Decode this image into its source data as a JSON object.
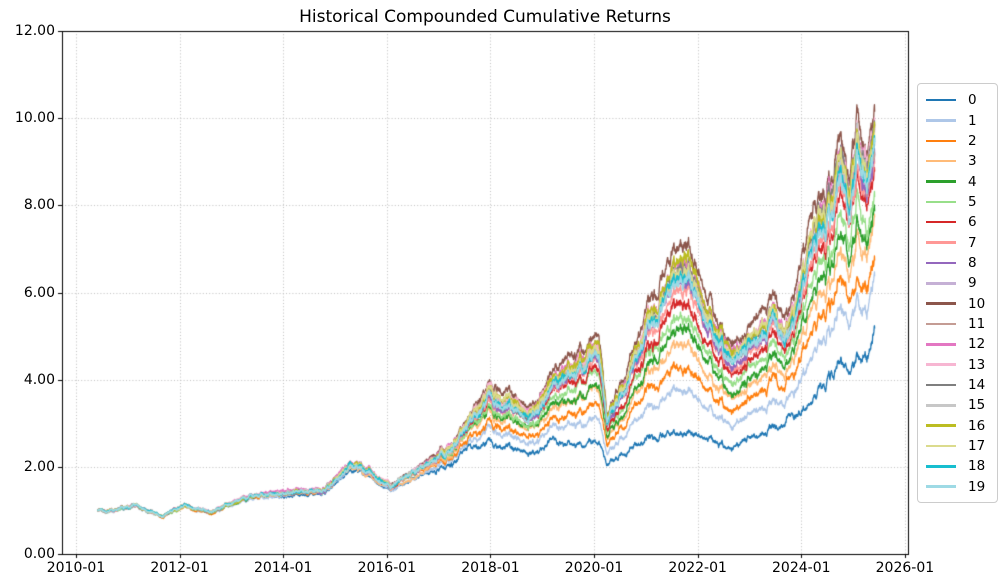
{
  "chart_data": {
    "type": "line",
    "title": "Historical Compounded Cumulative Returns",
    "xlabel": "",
    "ylabel": "",
    "grid": {
      "style": "dotted",
      "color": "#b8b8b8"
    },
    "legend": {
      "position": "outside-right"
    },
    "x_tick_labels": [
      "2010-01",
      "2012-01",
      "2014-01",
      "2016-01",
      "2018-01",
      "2020-01",
      "2022-01",
      "2024-01",
      "2026-01"
    ],
    "y_tick_labels": [
      "0.00",
      "2.00",
      "4.00",
      "6.00",
      "8.00",
      "10.00",
      "12.00"
    ],
    "xlim_years": [
      2009.73,
      2026.06
    ],
    "ylim": [
      0,
      12
    ],
    "x": [
      "2010-06",
      "2010-10",
      "2011-02",
      "2011-09",
      "2012-02",
      "2012-08",
      "2013-01",
      "2013-07",
      "2014-01",
      "2014-10",
      "2015-05",
      "2015-10",
      "2016-02",
      "2016-10",
      "2017-07",
      "2018-01",
      "2018-10",
      "2019-07",
      "2020-02",
      "2020-04",
      "2020-09",
      "2021-02",
      "2021-10",
      "2022-04",
      "2022-10",
      "2023-07",
      "2023-10",
      "2024-03",
      "2024-08",
      "2024-10",
      "2024-12",
      "2025-02",
      "2025-04",
      "2025-06"
    ],
    "series": [
      {
        "name": "0",
        "color": "#1f77b4",
        "values": [
          1.0,
          0.96,
          1.12,
          0.84,
          1.07,
          0.92,
          1.14,
          1.25,
          1.33,
          1.4,
          1.95,
          1.7,
          1.48,
          1.8,
          2.28,
          2.58,
          2.28,
          2.42,
          2.52,
          2.05,
          2.45,
          2.6,
          2.7,
          2.55,
          2.42,
          2.95,
          3.1,
          3.45,
          3.95,
          4.25,
          4.1,
          4.7,
          4.55,
          5.35
        ]
      },
      {
        "name": "1",
        "color": "#aec7e8",
        "values": [
          1.0,
          0.96,
          1.12,
          0.85,
          1.08,
          0.93,
          1.15,
          1.26,
          1.35,
          1.42,
          1.98,
          1.73,
          1.51,
          1.86,
          2.41,
          2.85,
          2.49,
          2.82,
          3.04,
          2.29,
          2.87,
          3.26,
          3.65,
          3.21,
          2.92,
          3.61,
          3.61,
          4.36,
          4.89,
          5.36,
          5.07,
          5.99,
          5.62,
          6.46
        ]
      },
      {
        "name": "2",
        "color": "#ff7f0e",
        "values": [
          1.0,
          0.97,
          1.13,
          0.85,
          1.08,
          0.93,
          1.16,
          1.27,
          1.36,
          1.44,
          2.01,
          1.76,
          1.52,
          1.89,
          2.49,
          3.03,
          2.64,
          3.1,
          3.39,
          2.46,
          3.15,
          3.71,
          4.29,
          3.66,
          3.26,
          4.06,
          3.95,
          4.99,
          5.52,
          6.12,
          5.73,
          6.86,
          6.34,
          7.22
        ]
      },
      {
        "name": "3",
        "color": "#ffbb78",
        "values": [
          1.0,
          0.97,
          1.13,
          0.85,
          1.08,
          0.94,
          1.16,
          1.28,
          1.37,
          1.45,
          2.02,
          1.77,
          1.54,
          1.92,
          2.56,
          3.18,
          2.76,
          3.32,
          3.68,
          2.59,
          3.38,
          4.07,
          4.81,
          4.02,
          3.54,
          4.42,
          4.23,
          5.48,
          6.03,
          6.72,
          6.26,
          7.57,
          6.93,
          7.82
        ]
      },
      {
        "name": "4",
        "color": "#2ca02c",
        "values": [
          1.01,
          0.97,
          1.13,
          0.86,
          1.09,
          0.94,
          1.17,
          1.28,
          1.37,
          1.46,
          2.03,
          1.78,
          1.55,
          1.94,
          2.6,
          3.26,
          2.82,
          3.44,
          3.84,
          2.67,
          3.51,
          4.28,
          5.11,
          4.23,
          3.7,
          4.63,
          4.39,
          5.77,
          6.33,
          7.08,
          6.56,
          7.98,
          7.27,
          8.18
        ]
      },
      {
        "name": "5",
        "color": "#98df8a",
        "values": [
          1.01,
          0.97,
          1.13,
          0.86,
          1.09,
          0.95,
          1.17,
          1.29,
          1.38,
          1.46,
          2.05,
          1.8,
          1.56,
          1.96,
          2.64,
          3.36,
          2.9,
          3.59,
          4.03,
          2.75,
          3.67,
          4.52,
          5.45,
          4.47,
          3.88,
          4.87,
          4.57,
          6.11,
          6.67,
          7.48,
          6.92,
          8.44,
          7.65,
          8.58
        ]
      },
      {
        "name": "6",
        "color": "#d62728",
        "values": [
          1.01,
          0.97,
          1.13,
          0.86,
          1.09,
          0.95,
          1.18,
          1.29,
          1.39,
          1.47,
          2.06,
          1.81,
          1.57,
          1.98,
          2.69,
          3.46,
          2.98,
          3.74,
          4.22,
          2.84,
          3.82,
          4.76,
          5.8,
          4.71,
          4.06,
          5.11,
          4.76,
          6.44,
          7.01,
          7.89,
          7.27,
          8.91,
          8.04,
          8.99
        ]
      },
      {
        "name": "7",
        "color": "#ff9896",
        "values": [
          1.01,
          0.98,
          1.14,
          0.86,
          1.09,
          0.95,
          1.18,
          1.3,
          1.39,
          1.48,
          2.07,
          1.82,
          1.57,
          2.0,
          2.72,
          3.53,
          3.04,
          3.85,
          4.36,
          2.91,
          3.93,
          4.94,
          6.05,
          4.89,
          4.2,
          5.29,
          4.89,
          6.69,
          7.27,
          8.19,
          7.53,
          9.26,
          8.33,
          9.29
        ]
      },
      {
        "name": "8",
        "color": "#9467bd",
        "values": [
          1.01,
          0.98,
          1.14,
          0.86,
          1.09,
          0.95,
          1.18,
          1.3,
          1.4,
          1.48,
          2.07,
          1.82,
          1.58,
          2.01,
          2.75,
          3.59,
          3.09,
          3.94,
          4.48,
          2.96,
          4.03,
          5.09,
          6.27,
          5.04,
          4.31,
          5.44,
          5.01,
          6.89,
          7.48,
          8.44,
          7.75,
          9.56,
          8.58,
          9.54
        ]
      },
      {
        "name": "9",
        "color": "#c5b0d5",
        "values": [
          1.01,
          0.98,
          1.14,
          0.87,
          1.1,
          0.95,
          1.18,
          1.3,
          1.4,
          1.49,
          2.08,
          1.83,
          1.58,
          2.01,
          2.76,
          3.62,
          3.1,
          3.98,
          4.53,
          2.99,
          4.07,
          5.15,
          6.36,
          5.1,
          4.36,
          5.5,
          5.06,
          6.98,
          7.56,
          8.54,
          7.84,
          9.67,
          8.67,
          9.64
        ]
      },
      {
        "name": "10",
        "color": "#8c564b",
        "values": [
          1.01,
          0.98,
          1.14,
          0.87,
          1.1,
          0.96,
          1.19,
          1.31,
          1.41,
          1.5,
          2.1,
          1.85,
          1.6,
          2.05,
          2.85,
          3.8,
          3.25,
          4.25,
          4.88,
          3.15,
          4.35,
          5.6,
          7.0,
          5.55,
          4.7,
          5.95,
          5.4,
          7.6,
          8.2,
          9.3,
          8.5,
          10.55,
          9.4,
          10.4
        ]
      },
      {
        "name": "11",
        "color": "#c49c94",
        "values": [
          1.01,
          0.98,
          1.14,
          0.87,
          1.1,
          0.96,
          1.18,
          1.3,
          1.4,
          1.49,
          2.08,
          1.83,
          1.59,
          2.02,
          2.78,
          3.65,
          3.13,
          4.03,
          4.6,
          3.02,
          4.12,
          5.24,
          6.48,
          5.19,
          4.43,
          5.59,
          5.12,
          7.1,
          7.69,
          8.69,
          7.97,
          9.85,
          8.82,
          9.79
        ]
      },
      {
        "name": "12",
        "color": "#e377c2",
        "values": [
          1.01,
          0.98,
          1.14,
          0.87,
          1.1,
          0.96,
          1.19,
          1.31,
          1.41,
          1.49,
          2.09,
          1.84,
          1.59,
          2.04,
          2.82,
          3.73,
          3.19,
          4.14,
          4.74,
          3.08,
          4.24,
          5.42,
          6.74,
          5.37,
          4.56,
          5.77,
          5.26,
          7.35,
          7.95,
          9.0,
          8.24,
          10.2,
          9.11,
          10.1
        ]
      },
      {
        "name": "13",
        "color": "#f7b6d2",
        "values": [
          1.01,
          0.98,
          1.14,
          0.87,
          1.1,
          0.96,
          1.19,
          1.31,
          1.4,
          1.49,
          2.09,
          1.84,
          1.59,
          2.03,
          2.8,
          3.7,
          3.17,
          4.1,
          4.69,
          3.06,
          4.2,
          5.36,
          6.66,
          5.31,
          4.52,
          5.71,
          5.22,
          7.27,
          7.86,
          8.9,
          8.15,
          10.08,
          9.01,
          10.0
        ]
      },
      {
        "name": "14",
        "color": "#7f7f7f",
        "values": [
          1.01,
          0.98,
          1.14,
          0.87,
          1.1,
          0.96,
          1.19,
          1.3,
          1.4,
          1.49,
          2.09,
          1.84,
          1.59,
          2.03,
          2.79,
          3.68,
          3.15,
          4.07,
          4.64,
          3.04,
          4.16,
          5.3,
          6.57,
          5.25,
          4.47,
          5.65,
          5.17,
          7.19,
          7.78,
          8.8,
          8.06,
          9.97,
          8.92,
          9.9
        ]
      },
      {
        "name": "15",
        "color": "#c7c7c7",
        "values": [
          1.01,
          0.98,
          1.14,
          0.87,
          1.1,
          0.95,
          1.18,
          1.3,
          1.4,
          1.49,
          2.08,
          1.83,
          1.58,
          2.02,
          2.77,
          3.63,
          3.11,
          3.99,
          4.55,
          3.0,
          4.08,
          5.18,
          6.4,
          5.13,
          4.38,
          5.53,
          5.08,
          7.02,
          7.61,
          8.59,
          7.88,
          9.73,
          8.72,
          9.69
        ]
      },
      {
        "name": "16",
        "color": "#bcbd22",
        "values": [
          1.01,
          0.98,
          1.14,
          0.87,
          1.1,
          0.96,
          1.19,
          1.31,
          1.4,
          1.49,
          2.09,
          1.84,
          1.59,
          2.03,
          2.81,
          3.71,
          3.18,
          4.12,
          4.71,
          3.07,
          4.22,
          5.39,
          6.7,
          5.34,
          4.54,
          5.74,
          5.24,
          7.31,
          7.9,
          8.95,
          8.19,
          10.14,
          9.06,
          10.05
        ]
      },
      {
        "name": "17",
        "color": "#dbdb8d",
        "values": [
          1.01,
          0.98,
          1.14,
          0.87,
          1.1,
          0.96,
          1.18,
          1.3,
          1.4,
          1.49,
          2.08,
          1.83,
          1.59,
          2.02,
          2.79,
          3.67,
          3.14,
          4.05,
          4.62,
          3.03,
          4.14,
          5.27,
          6.53,
          5.22,
          4.45,
          5.62,
          5.15,
          7.14,
          7.73,
          8.74,
          8.02,
          9.91,
          8.87,
          9.84
        ]
      },
      {
        "name": "18",
        "color": "#17becf",
        "values": [
          1.01,
          0.98,
          1.14,
          0.87,
          1.1,
          0.95,
          1.18,
          1.3,
          1.4,
          1.48,
          2.08,
          1.83,
          1.58,
          2.01,
          2.76,
          3.6,
          3.09,
          3.96,
          4.5,
          2.97,
          4.05,
          5.12,
          6.31,
          5.07,
          4.34,
          5.47,
          5.03,
          6.94,
          7.52,
          8.49,
          7.8,
          9.61,
          8.62,
          9.59
        ]
      },
      {
        "name": "19",
        "color": "#9edae5",
        "values": [
          1.01,
          0.98,
          1.14,
          0.86,
          1.09,
          0.95,
          1.18,
          1.3,
          1.39,
          1.48,
          2.07,
          1.82,
          1.58,
          2.0,
          2.74,
          3.57,
          3.07,
          3.9,
          4.43,
          2.94,
          3.99,
          5.03,
          6.18,
          4.98,
          4.27,
          5.38,
          4.96,
          6.81,
          7.39,
          8.34,
          7.66,
          9.44,
          8.48,
          9.44
        ]
      }
    ]
  }
}
